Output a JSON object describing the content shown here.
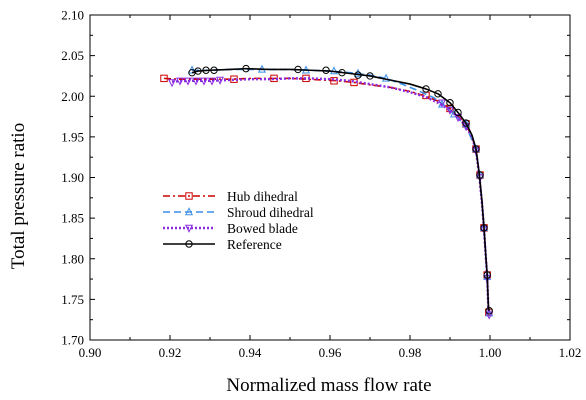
{
  "chart_data": {
    "type": "line",
    "title": "",
    "xlabel": "Normalized mass flow rate",
    "ylabel": "Total pressure ratio",
    "xlim": [
      0.9,
      1.02
    ],
    "ylim": [
      1.7,
      2.1
    ],
    "x_ticks": [
      0.9,
      0.92,
      0.94,
      0.96,
      0.98,
      1.0,
      1.02
    ],
    "y_ticks": [
      1.7,
      1.75,
      1.8,
      1.85,
      1.9,
      1.95,
      2.0,
      2.05,
      2.1
    ],
    "x_tick_labels": [
      "0.90",
      "0.92",
      "0.94",
      "0.96",
      "0.98",
      "1.00",
      "1.02"
    ],
    "y_tick_labels": [
      "1.70",
      "1.75",
      "1.80",
      "1.85",
      "1.90",
      "1.95",
      "2.00",
      "2.05",
      "2.10"
    ],
    "grid": false,
    "legend_position": "center-left",
    "series": [
      {
        "name": "Hub dihedral",
        "color": "#cc0000",
        "line_style": "dash-dot",
        "marker": "square",
        "points": [
          [
            0.9185,
            2.022
          ],
          [
            0.922,
            2.021
          ],
          [
            0.926,
            2.021
          ],
          [
            0.93,
            2.021
          ],
          [
            0.935,
            2.021
          ],
          [
            0.94,
            2.022
          ],
          [
            0.946,
            2.022
          ],
          [
            0.95,
            2.022
          ],
          [
            0.954,
            2.021
          ],
          [
            0.958,
            2.02
          ],
          [
            0.962,
            2.019
          ],
          [
            0.966,
            2.017
          ],
          [
            0.97,
            2.014
          ],
          [
            0.975,
            2.011
          ],
          [
            0.98,
            2.006
          ],
          [
            0.984,
            2.0
          ],
          [
            0.987,
            1.994
          ],
          [
            0.99,
            1.985
          ],
          [
            0.992,
            1.976
          ],
          [
            0.994,
            1.965
          ],
          [
            0.9955,
            1.95
          ],
          [
            0.9965,
            1.935
          ],
          [
            0.9973,
            1.905
          ],
          [
            0.998,
            1.87
          ],
          [
            0.9985,
            1.838
          ],
          [
            0.999,
            1.8
          ],
          [
            0.9993,
            1.78
          ],
          [
            0.9996,
            1.74
          ],
          [
            0.9997,
            1.734
          ]
        ],
        "markers": [
          [
            0.9185,
            2.022
          ],
          [
            0.936,
            2.021
          ],
          [
            0.946,
            2.022
          ],
          [
            0.954,
            2.022
          ],
          [
            0.961,
            2.019
          ],
          [
            0.966,
            2.017
          ],
          [
            0.984,
            2.001
          ],
          [
            0.99,
            1.985
          ],
          [
            0.994,
            1.966
          ],
          [
            0.9965,
            1.935
          ],
          [
            0.9975,
            1.903
          ],
          [
            0.9985,
            1.838
          ],
          [
            0.9993,
            1.78
          ],
          [
            0.9997,
            1.734
          ]
        ]
      },
      {
        "name": "Shroud dihedral",
        "color": "#3a8ee6",
        "line_style": "dashed",
        "marker": "triangle",
        "points": [
          [
            0.9255,
            2.032
          ],
          [
            0.93,
            2.032
          ],
          [
            0.935,
            2.033
          ],
          [
            0.94,
            2.033
          ],
          [
            0.945,
            2.033
          ],
          [
            0.95,
            2.033
          ],
          [
            0.955,
            2.032
          ],
          [
            0.96,
            2.031
          ],
          [
            0.965,
            2.029
          ],
          [
            0.97,
            2.026
          ],
          [
            0.974,
            2.022
          ],
          [
            0.978,
            2.015
          ],
          [
            0.982,
            2.007
          ],
          [
            0.986,
            1.998
          ],
          [
            0.989,
            1.987
          ],
          [
            0.991,
            1.978
          ],
          [
            0.993,
            1.968
          ],
          [
            0.995,
            1.952
          ],
          [
            0.9965,
            1.935
          ],
          [
            0.9973,
            1.905
          ],
          [
            0.998,
            1.87
          ],
          [
            0.9985,
            1.838
          ],
          [
            0.999,
            1.8
          ],
          [
            0.9993,
            1.778
          ],
          [
            0.9996,
            1.74
          ],
          [
            0.9998,
            1.733
          ]
        ],
        "markers": [
          [
            0.9255,
            2.032
          ],
          [
            0.943,
            2.033
          ],
          [
            0.954,
            2.032
          ],
          [
            0.961,
            2.031
          ],
          [
            0.967,
            2.028
          ],
          [
            0.974,
            2.022
          ],
          [
            0.988,
            1.99
          ],
          [
            0.991,
            1.978
          ],
          [
            0.994,
            1.966
          ],
          [
            0.9965,
            1.935
          ],
          [
            0.9975,
            1.903
          ],
          [
            0.9985,
            1.838
          ],
          [
            0.9993,
            1.778
          ],
          [
            0.9998,
            1.733
          ]
        ]
      },
      {
        "name": "Bowed blade",
        "color": "#8a2be2",
        "line_style": "dotted",
        "marker": "triangle-down",
        "points": [
          [
            0.9205,
            2.018
          ],
          [
            0.925,
            2.019
          ],
          [
            0.93,
            2.019
          ],
          [
            0.935,
            2.02
          ],
          [
            0.94,
            2.021
          ],
          [
            0.945,
            2.021
          ],
          [
            0.95,
            2.022
          ],
          [
            0.955,
            2.022
          ],
          [
            0.96,
            2.021
          ],
          [
            0.965,
            2.019
          ],
          [
            0.97,
            2.015
          ],
          [
            0.975,
            2.011
          ],
          [
            0.98,
            2.005
          ],
          [
            0.984,
            1.999
          ],
          [
            0.987,
            1.992
          ],
          [
            0.99,
            1.983
          ],
          [
            0.992,
            1.974
          ],
          [
            0.994,
            1.963
          ],
          [
            0.9955,
            1.95
          ],
          [
            0.9965,
            1.933
          ],
          [
            0.9973,
            1.903
          ],
          [
            0.998,
            1.868
          ],
          [
            0.9985,
            1.836
          ],
          [
            0.999,
            1.798
          ],
          [
            0.9993,
            1.776
          ],
          [
            0.9996,
            1.738
          ],
          [
            0.9998,
            1.731
          ]
        ],
        "markers": [
          [
            0.9205,
            2.017
          ],
          [
            0.9225,
            2.019
          ],
          [
            0.9245,
            2.019
          ],
          [
            0.9265,
            2.019
          ],
          [
            0.9285,
            2.019
          ],
          [
            0.9305,
            2.019
          ],
          [
            0.9325,
            2.02
          ],
          [
            0.988,
            1.992
          ],
          [
            0.99,
            1.983
          ],
          [
            0.992,
            1.974
          ],
          [
            0.994,
            1.963
          ],
          [
            0.9965,
            1.933
          ],
          [
            0.9975,
            1.9
          ],
          [
            0.9985,
            1.836
          ],
          [
            0.9993,
            1.776
          ],
          [
            0.9998,
            1.731
          ]
        ]
      },
      {
        "name": "Reference",
        "color": "#000000",
        "line_style": "solid",
        "marker": "circle",
        "points": [
          [
            0.9255,
            2.029
          ],
          [
            0.927,
            2.031
          ],
          [
            0.93,
            2.032
          ],
          [
            0.935,
            2.033
          ],
          [
            0.939,
            2.034
          ],
          [
            0.945,
            2.033
          ],
          [
            0.95,
            2.033
          ],
          [
            0.955,
            2.032
          ],
          [
            0.96,
            2.031
          ],
          [
            0.965,
            2.028
          ],
          [
            0.97,
            2.025
          ],
          [
            0.975,
            2.02
          ],
          [
            0.98,
            2.015
          ],
          [
            0.984,
            2.009
          ],
          [
            0.987,
            2.003
          ],
          [
            0.99,
            1.992
          ],
          [
            0.992,
            1.98
          ],
          [
            0.994,
            1.967
          ],
          [
            0.9955,
            1.952
          ],
          [
            0.9965,
            1.935
          ],
          [
            0.9973,
            1.905
          ],
          [
            0.998,
            1.87
          ],
          [
            0.9985,
            1.838
          ],
          [
            0.999,
            1.8
          ],
          [
            0.9993,
            1.78
          ],
          [
            0.9996,
            1.74
          ],
          [
            0.9998,
            1.736
          ]
        ],
        "markers": [
          [
            0.9255,
            2.029
          ],
          [
            0.927,
            2.031
          ],
          [
            0.929,
            2.032
          ],
          [
            0.931,
            2.032
          ],
          [
            0.939,
            2.034
          ],
          [
            0.952,
            2.033
          ],
          [
            0.959,
            2.032
          ],
          [
            0.963,
            2.029
          ],
          [
            0.967,
            2.026
          ],
          [
            0.97,
            2.025
          ],
          [
            0.984,
            2.009
          ],
          [
            0.987,
            2.003
          ],
          [
            0.99,
            1.992
          ],
          [
            0.992,
            1.98
          ],
          [
            0.994,
            1.967
          ],
          [
            0.9965,
            1.935
          ],
          [
            0.9975,
            1.903
          ],
          [
            0.9985,
            1.838
          ],
          [
            0.9993,
            1.78
          ],
          [
            0.9998,
            1.736
          ]
        ]
      }
    ]
  }
}
